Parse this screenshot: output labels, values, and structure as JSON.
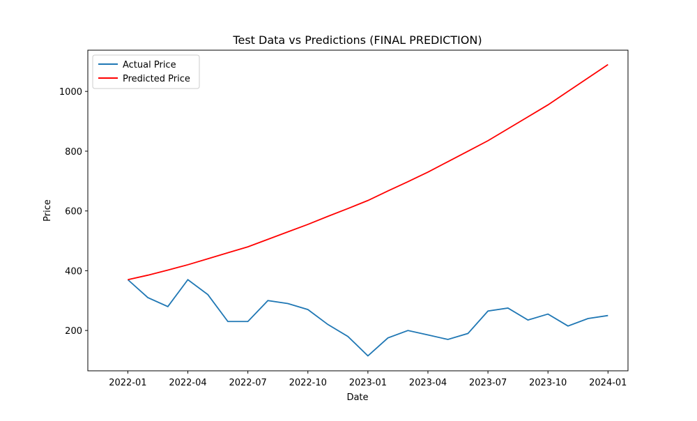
{
  "chart_data": {
    "type": "line",
    "title": "Test Data vs Predictions (FINAL PREDICTION)",
    "x_label": "Date",
    "y_label": "Price",
    "x": [
      "2022-01",
      "2022-02",
      "2022-03",
      "2022-04",
      "2022-05",
      "2022-06",
      "2022-07",
      "2022-08",
      "2022-09",
      "2022-10",
      "2022-11",
      "2022-12",
      "2023-01",
      "2023-02",
      "2023-03",
      "2023-04",
      "2023-05",
      "2023-06",
      "2023-07",
      "2023-08",
      "2023-09",
      "2023-10",
      "2023-11",
      "2023-12",
      "2024-01"
    ],
    "series": [
      {
        "name": "Actual Price",
        "color": "#1f77b4",
        "values": [
          370,
          310,
          280,
          370,
          320,
          230,
          230,
          300,
          290,
          270,
          220,
          180,
          115,
          175,
          200,
          185,
          170,
          190,
          265,
          275,
          235,
          255,
          215,
          240,
          250
        ]
      },
      {
        "name": "Predicted Price",
        "color": "#ff0000",
        "values": [
          370,
          385,
          402,
          420,
          440,
          460,
          480,
          505,
          530,
          555,
          582,
          608,
          635,
          667,
          698,
          730,
          765,
          800,
          835,
          875,
          915,
          955,
          1000,
          1045,
          1090
        ]
      }
    ],
    "xlim": [
      "2021-11",
      "2024-02"
    ],
    "xticks": [
      "2022-01",
      "2022-04",
      "2022-07",
      "2022-10",
      "2023-01",
      "2023-04",
      "2023-07",
      "2023-10",
      "2024-01"
    ],
    "ylim": [
      65,
      1138
    ],
    "yticks": [
      200,
      400,
      600,
      800,
      1000
    ],
    "grid": false,
    "legend": "upper-left"
  }
}
